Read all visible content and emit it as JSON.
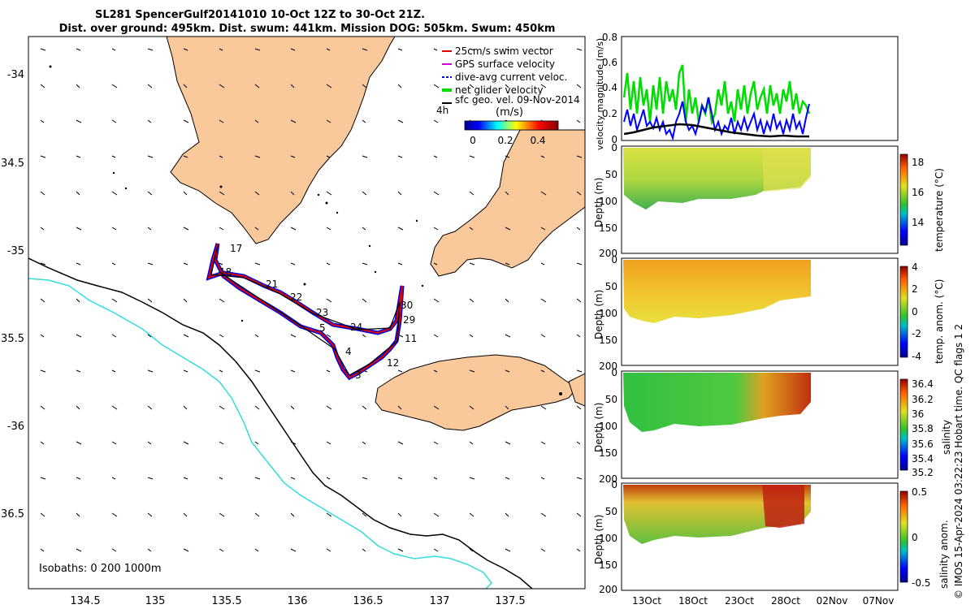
{
  "title": {
    "line1": "SL281 SpencerGulf20141010 10-Oct 12Z to 30-Oct 21Z.",
    "line2": "Dist. over ground: 495km. Dist. swum: 441km. Mission DOG: 505km. Swum: 450km"
  },
  "map": {
    "lon_ticks": [
      "134.5",
      "135",
      "135.5",
      "136",
      "136.5",
      "137",
      "137.5"
    ],
    "lat_ticks": [
      "-34",
      "34.5",
      "-35",
      "35.5",
      "-36",
      "36.5"
    ],
    "isobaths_label": "Isobaths: 0   200  1000m",
    "legend": [
      {
        "label": "25cm/s swim vector",
        "color": "#e00000"
      },
      {
        "label": "GPS surface velocity",
        "color": "#d000d0"
      },
      {
        "label": "dive-avg current veloc.",
        "color": "#0000e0"
      },
      {
        "label": "net glider velocity",
        "color": "#00dd00"
      },
      {
        "label": "sfc geo. vel. 09-Nov-2014",
        "color": "#000000"
      }
    ],
    "colorbar": {
      "prefix": "4h",
      "unit": "(m/s)",
      "ticks": [
        "0",
        "0.2",
        "0.4"
      ]
    },
    "track_labels": [
      "17",
      "18",
      "21",
      "22",
      "23",
      "5",
      "24",
      "4",
      "3",
      "30",
      "29",
      "11",
      "12"
    ],
    "colors": {
      "land": "#f9c89b",
      "track": "#e00000",
      "current": "#0000e0",
      "isobath_200": "#000000",
      "isobath_1000": "#33dddd"
    }
  },
  "side_panels": {
    "velocity": {
      "ylabel": "velocity magnitude (m/s)",
      "yticks": [
        "0",
        "0.2",
        "0.4",
        "0.6",
        "0.8"
      ]
    },
    "depth_ylabel": "Depth (m)",
    "depth_ticks": [
      "0",
      "50",
      "100",
      "150",
      "200"
    ],
    "date_ticks": [
      "13Oct",
      "18Oct",
      "23Oct",
      "28Oct",
      "02Nov",
      "07Nov"
    ],
    "panels": [
      {
        "cb_label": "temperature (°C)",
        "cb_ticks": [
          "18",
          "16",
          "14"
        ]
      },
      {
        "cb_label": "temp. anom. (°C)",
        "cb_ticks": [
          "4",
          "2",
          "0",
          "-2",
          "-4"
        ]
      },
      {
        "cb_label": "salinity",
        "cb_ticks": [
          "36.4",
          "36.2",
          "36",
          "35.8",
          "35.6",
          "35.4",
          "35.2"
        ]
      },
      {
        "cb_label": "salinity anom.",
        "cb_ticks": [
          "0.5",
          "0",
          "-0.5"
        ]
      }
    ],
    "footer": "© IMOS 15-Apr-2024 03:22:23 Hobart time. QC flags 1  2"
  }
}
